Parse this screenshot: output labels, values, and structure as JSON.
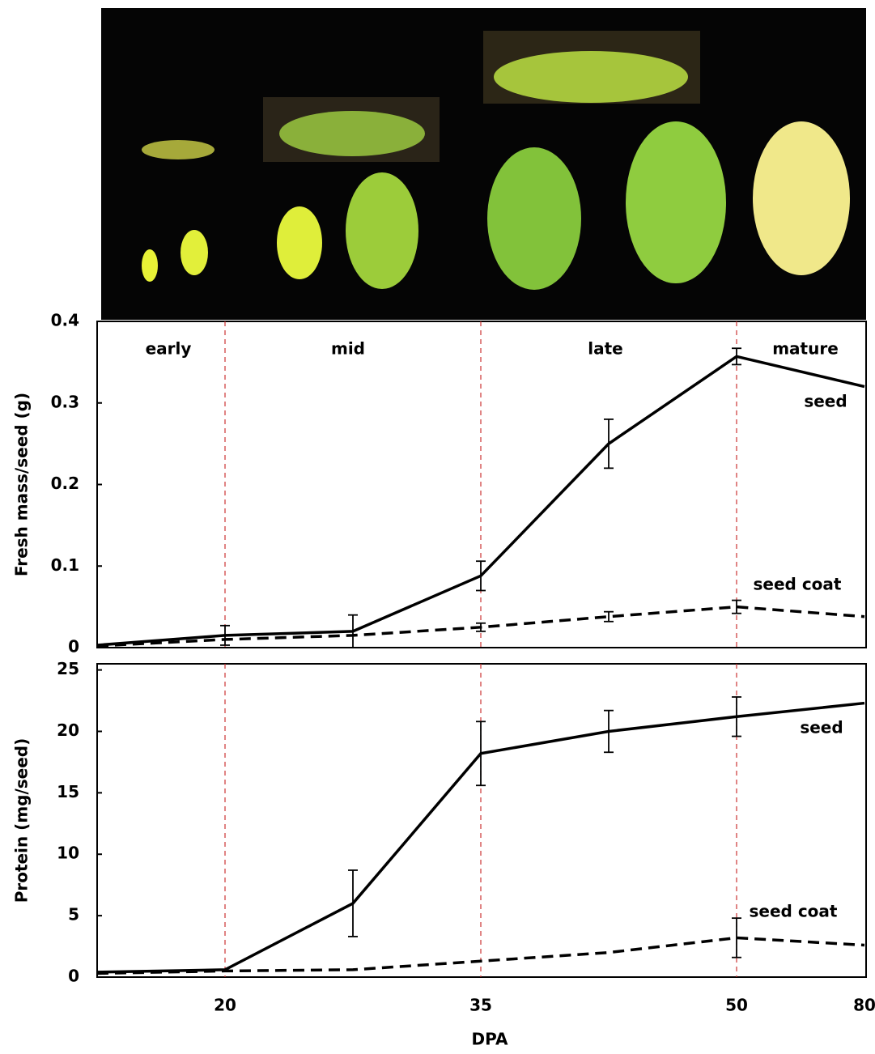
{
  "chart_data": [
    {
      "type": "line",
      "ylabel": "Fresh mass/seed (g)",
      "annotations": [
        "early",
        "mid",
        "late",
        "mature"
      ],
      "categories": [
        null,
        "20",
        null,
        "35",
        null,
        "50",
        "80"
      ],
      "ylim": [
        0,
        0.4
      ],
      "yticks": [
        0,
        0.1,
        0.2,
        0.3,
        0.4
      ],
      "series": [
        {
          "name": "seed",
          "color": "#000000",
          "dashed": false,
          "values": [
            0.003,
            0.015,
            0.02,
            0.088,
            0.25,
            0.357,
            0.32
          ],
          "errors": [
            null,
            0.012,
            0.02,
            0.018,
            0.03,
            0.01,
            null
          ]
        },
        {
          "name": "seed coat",
          "color": "#000000",
          "dashed": true,
          "values": [
            0.002,
            0.01,
            0.015,
            0.025,
            0.038,
            0.05,
            0.038
          ],
          "errors": [
            null,
            null,
            null,
            0.005,
            0.006,
            0.008,
            null
          ]
        }
      ]
    },
    {
      "type": "line",
      "ylabel": "Protein (mg/seed)",
      "xlabel": "DPA",
      "categories": [
        null,
        "20",
        null,
        "35",
        null,
        "50",
        "80"
      ],
      "ylim": [
        0,
        25.5
      ],
      "yticks": [
        0,
        5,
        10,
        15,
        20,
        25
      ],
      "series": [
        {
          "name": "seed",
          "color": "#000000",
          "dashed": false,
          "values": [
            0.4,
            0.6,
            6.0,
            18.2,
            20.0,
            21.2,
            22.3
          ],
          "errors": [
            null,
            null,
            2.7,
            2.6,
            1.7,
            1.6,
            null
          ]
        },
        {
          "name": "seed coat",
          "color": "#000000",
          "dashed": true,
          "values": [
            0.3,
            0.5,
            0.6,
            1.3,
            2.0,
            3.2,
            2.6
          ],
          "errors": [
            null,
            null,
            null,
            null,
            null,
            1.6,
            null
          ]
        }
      ]
    }
  ]
}
